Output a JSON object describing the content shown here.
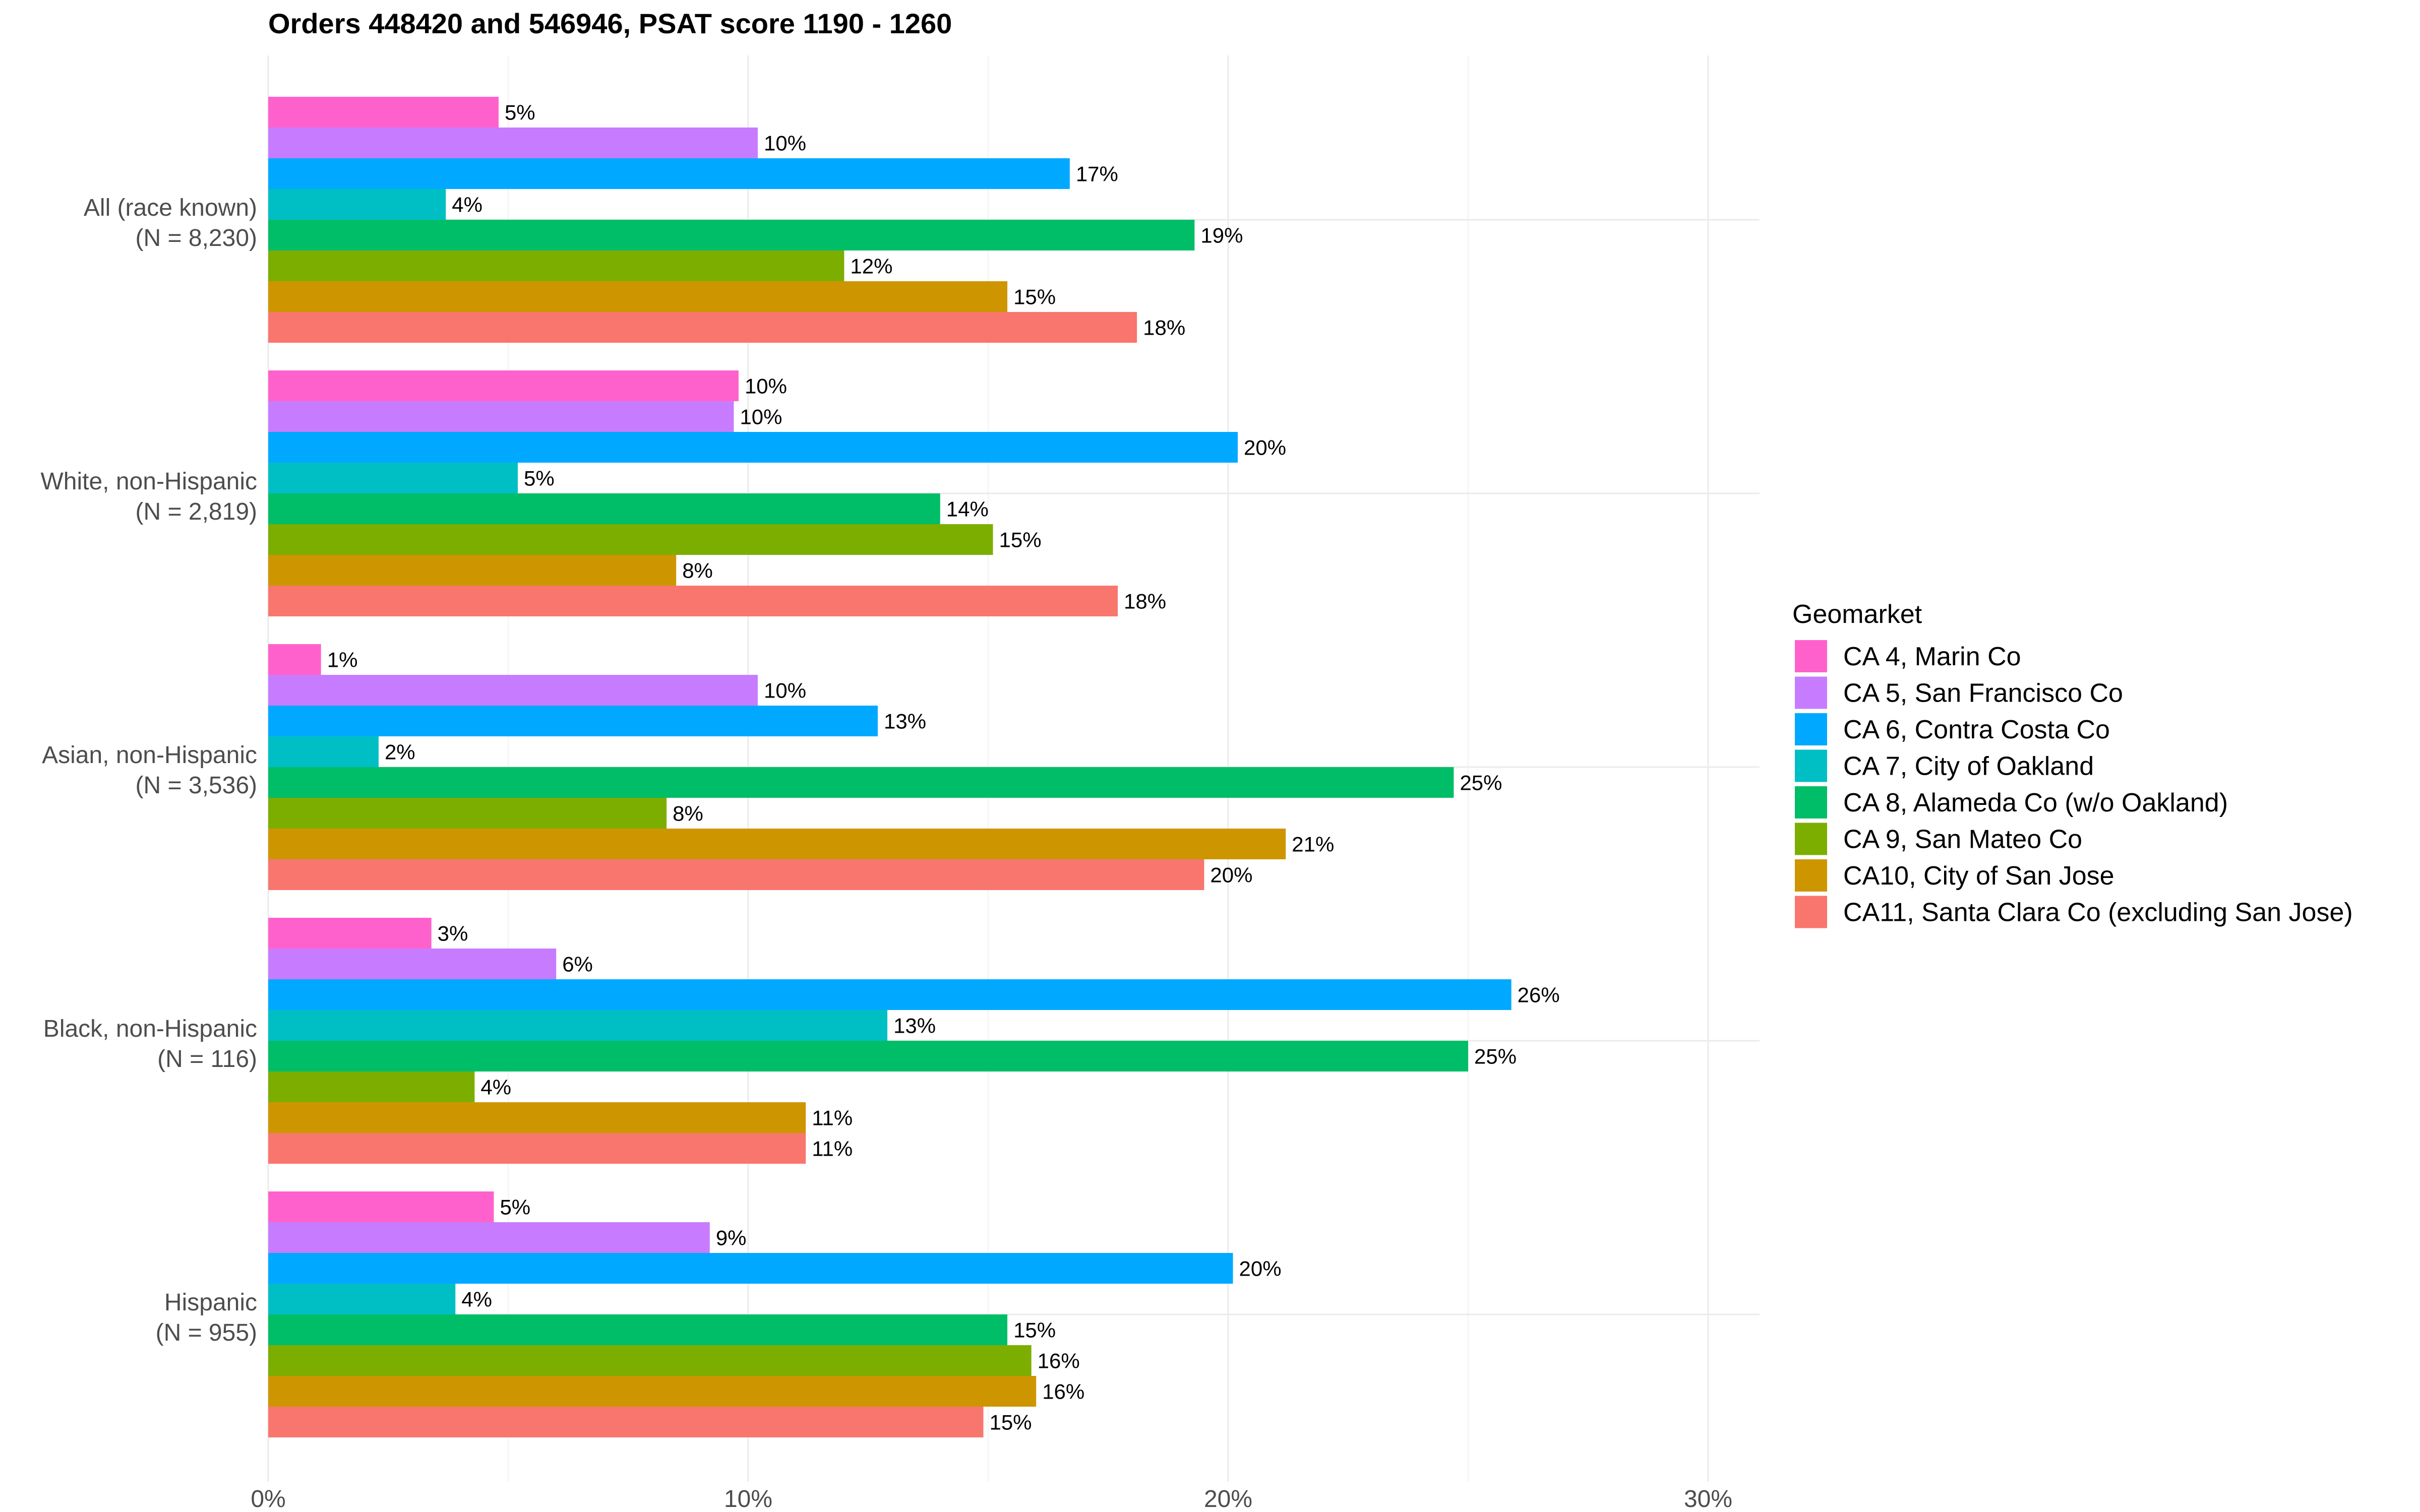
{
  "chart_data": {
    "type": "bar",
    "orientation": "horizontal",
    "title": "Orders 448420 and 546946, PSAT score 1190 - 1260",
    "xlabel": "",
    "ylabel": "",
    "xlim": [
      0,
      31
    ],
    "x_ticks": [
      0,
      10,
      20,
      30
    ],
    "x_tick_labels": [
      "0%",
      "10%",
      "20%",
      "30%"
    ],
    "grid": true,
    "legend_title": "Geomarket",
    "legend_position": "right",
    "categories": [
      "All (race known)\n(N = 8,230)",
      "White, non-Hispanic\n(N = 2,819)",
      "Asian, non-Hispanic\n(N = 3,536)",
      "Black, non-Hispanic\n(N = 116)",
      "Hispanic\n(N = 955)"
    ],
    "category_lines": [
      [
        "All (race known)",
        "(N = 8,230)"
      ],
      [
        "White, non-Hispanic",
        "(N = 2,819)"
      ],
      [
        "Asian, non-Hispanic",
        "(N = 3,536)"
      ],
      [
        "Black, non-Hispanic",
        "(N = 116)"
      ],
      [
        "Hispanic",
        "(N = 955)"
      ]
    ],
    "series": [
      {
        "name": "CA 4, Marin Co",
        "color": "#FF61CC",
        "values": [
          5,
          10,
          1,
          3,
          5
        ],
        "exact": [
          4.8,
          9.8,
          1.1,
          3.4,
          4.7
        ]
      },
      {
        "name": "CA 5, San Francisco Co",
        "color": "#C77CFF",
        "values": [
          10,
          10,
          10,
          6,
          9
        ],
        "exact": [
          10.2,
          9.7,
          10.2,
          6.0,
          9.2
        ]
      },
      {
        "name": "CA 6, Contra Costa Co",
        "color": "#00A9FF",
        "values": [
          17,
          20,
          13,
          26,
          20
        ],
        "exact": [
          16.7,
          20.2,
          12.7,
          25.9,
          20.1
        ]
      },
      {
        "name": "CA 7, City of Oakland",
        "color": "#00BFC4",
        "values": [
          4,
          5,
          2,
          13,
          4
        ],
        "exact": [
          3.7,
          5.2,
          2.3,
          12.9,
          3.9
        ]
      },
      {
        "name": "CA 8, Alameda Co (w/o Oakland)",
        "color": "#00BE67",
        "values": [
          19,
          14,
          25,
          25,
          15
        ],
        "exact": [
          19.3,
          14.0,
          24.7,
          25.0,
          15.4
        ]
      },
      {
        "name": "CA 9, San Mateo Co",
        "color": "#7CAE00",
        "values": [
          12,
          15,
          8,
          4,
          16
        ],
        "exact": [
          12.0,
          15.1,
          8.3,
          4.3,
          15.9
        ]
      },
      {
        "name": "CA10, City of San Jose",
        "color": "#CD9600",
        "values": [
          15,
          8,
          21,
          11,
          16
        ],
        "exact": [
          15.4,
          8.5,
          21.2,
          11.2,
          16.0
        ]
      },
      {
        "name": "CA11, Santa Clara Co (excluding San Jose)",
        "color": "#F8766D",
        "values": [
          18,
          18,
          20,
          11,
          15
        ],
        "exact": [
          18.1,
          17.7,
          19.5,
          11.2,
          14.9
        ]
      }
    ]
  }
}
